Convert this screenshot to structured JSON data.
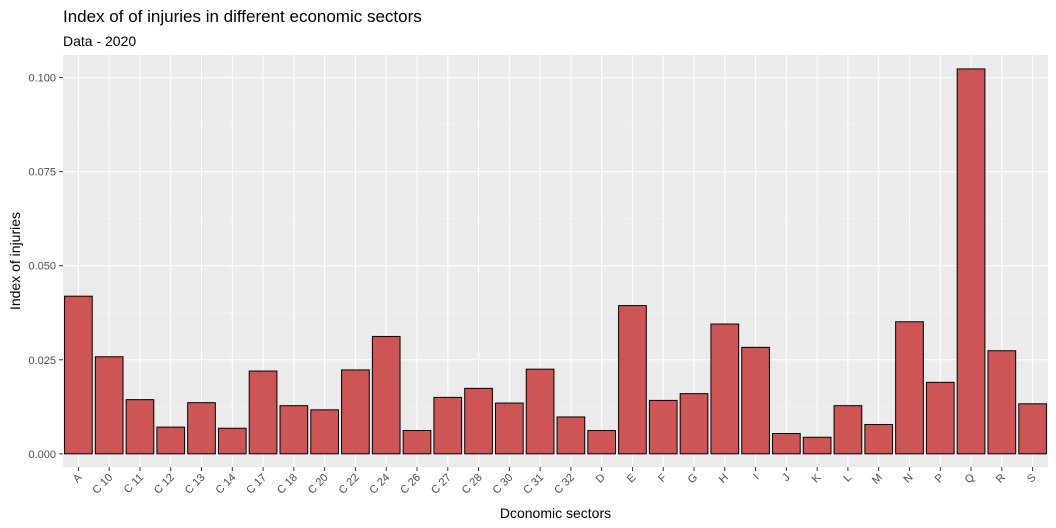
{
  "chart_data": {
    "type": "bar",
    "title": "Index of of injuries in different economic sectors",
    "subtitle": "Data - 2020",
    "xlabel": "Dconomic sectors",
    "ylabel": "Index of injuries",
    "ylim": [
      -0.0035,
      0.106
    ],
    "yticks": [
      0.0,
      0.025,
      0.05,
      0.075,
      0.1
    ],
    "ytick_labels": [
      "0.000",
      "0.025",
      "0.050",
      "0.075",
      "0.100"
    ],
    "categories": [
      "A",
      "C 10",
      "C 11",
      "C 12",
      "C 13",
      "C 14",
      "C 17",
      "C 18",
      "C 20",
      "C 22",
      "C 24",
      "C 26",
      "C 27",
      "C 28",
      "C 30",
      "C 31",
      "C 32",
      "D",
      "E",
      "F",
      "G",
      "H",
      "I",
      "J",
      "K",
      "L",
      "M",
      "N",
      "P",
      "Q",
      "R",
      "S"
    ],
    "values": [
      0.0419,
      0.0258,
      0.0144,
      0.0071,
      0.0136,
      0.0068,
      0.022,
      0.0128,
      0.0117,
      0.0223,
      0.0312,
      0.0062,
      0.015,
      0.0174,
      0.0135,
      0.0225,
      0.0098,
      0.0062,
      0.0394,
      0.0142,
      0.016,
      0.0345,
      0.0283,
      0.0054,
      0.0044,
      0.0128,
      0.0078,
      0.0351,
      0.019,
      0.1023,
      0.0274,
      0.0133
    ],
    "grid": true,
    "legend": "none",
    "colors": {
      "bar_fill": "#cd5555",
      "bar_stroke": "#000000",
      "panel": "#ebebeb",
      "grid_major": "#ffffff",
      "grid_minor": "#f3f3f3"
    }
  }
}
